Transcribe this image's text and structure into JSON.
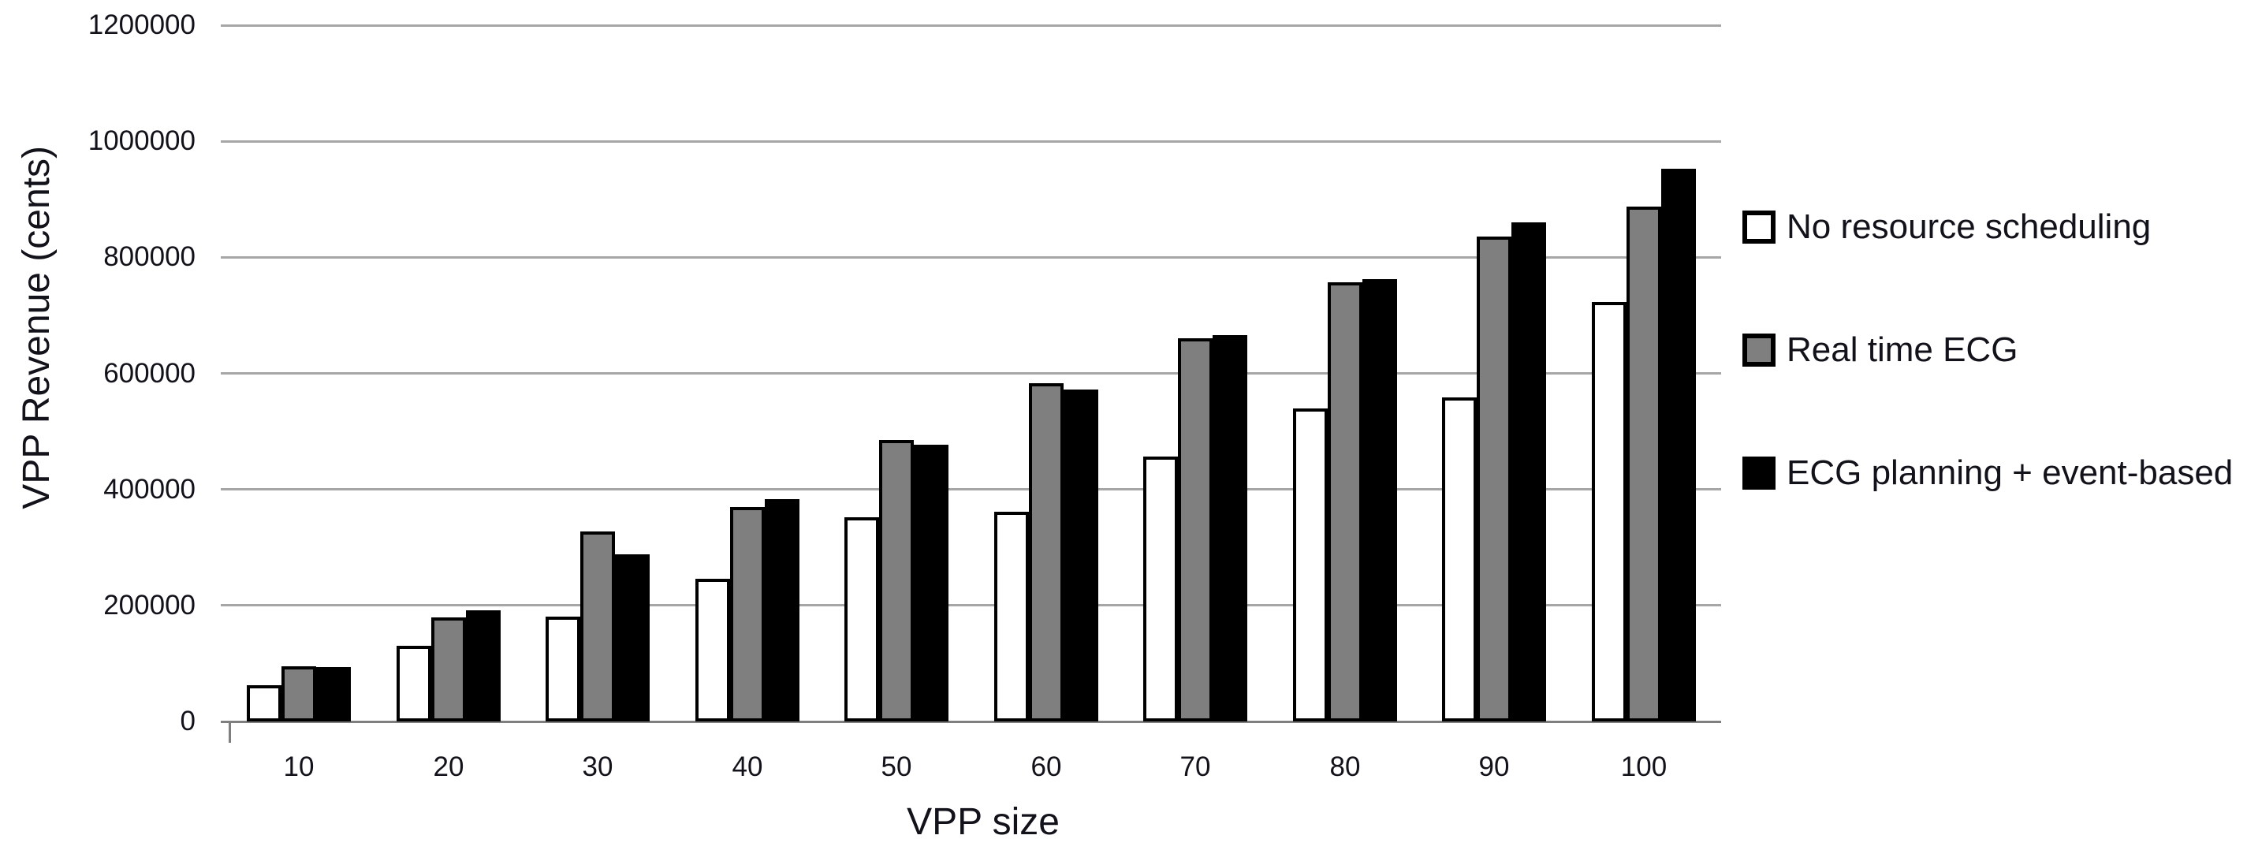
{
  "chart_data": {
    "type": "bar",
    "title": "",
    "xlabel": "VPP size",
    "ylabel": "VPP Revenue (cents)",
    "categories": [
      "10",
      "20",
      "30",
      "40",
      "50",
      "60",
      "70",
      "80",
      "90",
      "100"
    ],
    "series": [
      {
        "name": "No resource scheduling",
        "fill": "#ffffff",
        "values": [
          62000,
          130000,
          181000,
          246000,
          352000,
          362000,
          456000,
          539000,
          558000,
          723000
        ]
      },
      {
        "name": "Real time ECG",
        "fill": "#7f7f7f",
        "values": [
          95000,
          179000,
          328000,
          370000,
          485000,
          583000,
          661000,
          757000,
          836000,
          887000
        ]
      },
      {
        "name": "ECG planning + event-based",
        "fill": "#000000",
        "values": [
          94000,
          191000,
          288000,
          383000,
          477000,
          572000,
          666000,
          762000,
          860000,
          953000
        ]
      }
    ],
    "ylim": [
      0,
      1200000
    ],
    "ytick_step": 200000,
    "grid": true,
    "legend_position": "right",
    "bar_border_color": "#000000",
    "gridline_color": "#a6a6a6",
    "axis_line_color": "#7f7f7f",
    "text_color": "#12121a"
  }
}
